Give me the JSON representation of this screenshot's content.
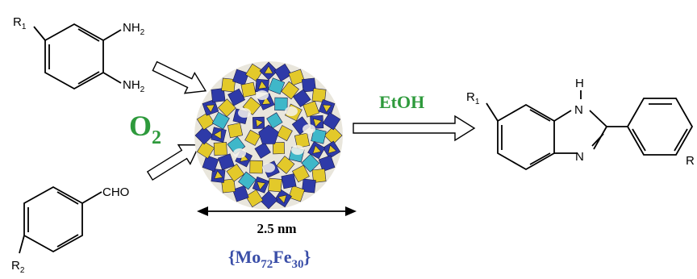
{
  "reactant_diamine": {
    "substituent": "R",
    "substituent_sub": "1",
    "group_a": "NH",
    "group_a_sub": "2",
    "group_b": "NH",
    "group_b_sub": "2"
  },
  "reactant_aldehyde": {
    "group": "CHO",
    "substituent": "R",
    "substituent_sub": "2"
  },
  "oxidant": {
    "label": "O",
    "sub": "2"
  },
  "catalyst": {
    "size_label": "2.5 nm",
    "formula_open": "{Mo",
    "formula_sub1": "72",
    "formula_mid": "Fe",
    "formula_sub2": "30",
    "formula_close": "}"
  },
  "solvent": "EtOH",
  "product": {
    "substituent": "R",
    "substituent_sub": "1",
    "nh_label": "H",
    "n1_label": "N",
    "n2_label": "N",
    "substituent2": "R"
  },
  "colors": {
    "oxidant_green": "#2e9a3c",
    "solvent_green": "#2e9a3c",
    "formula_blue": "#3a4ea8",
    "polyhedra_blue": "#2e3aa8",
    "polyhedra_yellow": "#e3c92a",
    "polyhedra_cyan": "#3fb7c9"
  }
}
